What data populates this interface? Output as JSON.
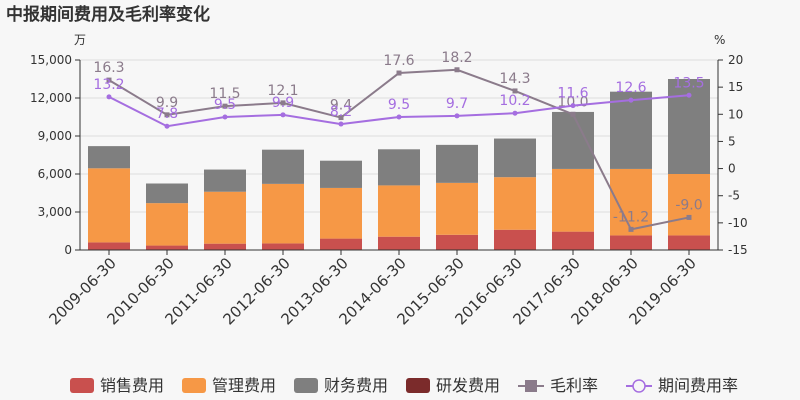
{
  "chart_data": {
    "type": "bar",
    "title": "中报期间费用及毛利率变化",
    "left_unit": "万",
    "right_unit": "%",
    "categories": [
      "2009-06-30",
      "2010-06-30",
      "2011-06-30",
      "2012-06-30",
      "2013-06-30",
      "2014-06-30",
      "2015-06-30",
      "2016-06-30",
      "2017-06-30",
      "2018-06-30",
      "2019-06-30"
    ],
    "ylim_left": [
      0,
      15000
    ],
    "yticks_left": [
      "0",
      "3,000",
      "6,000",
      "9,000",
      "12,000",
      "15,000"
    ],
    "ylim_right": [
      -15,
      20
    ],
    "yticks_right": [
      "-15",
      "-10",
      "-5",
      "0",
      "5",
      "10",
      "15",
      "20"
    ],
    "bar_series": [
      {
        "name": "销售费用",
        "color": "#c9504e",
        "values": [
          600,
          350,
          500,
          520,
          900,
          1050,
          1200,
          1600,
          1450,
          1150,
          1150
        ]
      },
      {
        "name": "管理费用",
        "color": "#f69846",
        "values": [
          5850,
          3350,
          4100,
          4700,
          4000,
          4050,
          4100,
          4150,
          4950,
          5250,
          4850
        ]
      },
      {
        "name": "财务费用",
        "color": "#7f7f7f",
        "values": [
          1750,
          1550,
          1750,
          2700,
          2150,
          2850,
          3000,
          3050,
          4500,
          6100,
          7500
        ]
      },
      {
        "name": "研发费用",
        "color": "#7b2b2b",
        "values": [
          0,
          0,
          0,
          0,
          0,
          0,
          0,
          0,
          0,
          0,
          0
        ]
      }
    ],
    "line_series": [
      {
        "name": "毛利率",
        "color": "#8b7b8b",
        "marker": "square",
        "values": [
          16.3,
          9.9,
          11.5,
          12.1,
          9.4,
          17.6,
          18.2,
          14.3,
          10.0,
          -11.2,
          -9.0
        ],
        "labels": [
          "16.3",
          "9.9",
          "11.5",
          "12.1",
          "9.4",
          "17.6",
          "18.2",
          "14.3",
          "10.0",
          "-11.2",
          "-9.0"
        ]
      },
      {
        "name": "期间费用率",
        "color": "#a56ee0",
        "marker": "circle",
        "values": [
          13.2,
          7.8,
          9.5,
          9.9,
          8.2,
          9.5,
          9.7,
          10.2,
          11.6,
          12.6,
          13.5
        ],
        "labels": [
          "13.2",
          "7.8",
          "9.5",
          "9.9",
          "8.2",
          "9.5",
          "9.7",
          "10.2",
          "11.6",
          "12.6",
          "13.5"
        ]
      }
    ]
  }
}
